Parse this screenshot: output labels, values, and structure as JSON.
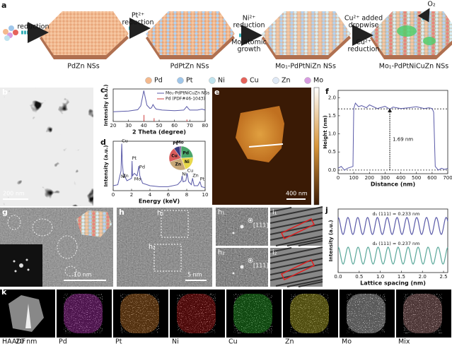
{
  "schematic": {
    "label": "a",
    "steps": [
      {
        "lines": [
          "reduction"
        ]
      },
      {
        "lines": [
          "Pt²⁺",
          "reduction"
        ]
      },
      {
        "lines": [
          "Ni²⁺",
          "reduction",
          "Mo atomic",
          "growth"
        ]
      },
      {
        "lines": [
          "Cu²⁺ added",
          "dropwise",
          "Cu²⁺",
          "reduction"
        ]
      }
    ],
    "products": [
      "PdZn NSs",
      "PdPtZn NSs",
      "Mo₁-PdPtNiZn NSs",
      "Mo₁-PdPtNiCuZn NSs"
    ],
    "o2": "O₂",
    "legend": [
      {
        "name": "Pd",
        "color": "#f4b98d"
      },
      {
        "name": "Pt",
        "color": "#9fc6ea"
      },
      {
        "name": "Ni",
        "color": "#bfe3ee"
      },
      {
        "name": "Cu",
        "color": "#e5625a"
      },
      {
        "name": "Zn",
        "color": "#dfe9f6"
      },
      {
        "name": "Mo",
        "color": "#d79be0"
      }
    ]
  },
  "b": {
    "label": "b",
    "scale": "200 nm"
  },
  "c": {
    "label": "c",
    "xlabel": "2 Theta (degree)",
    "ylabel": "Intensity (a.u.)",
    "xlim": [
      20,
      80
    ],
    "ylim": [
      0,
      1
    ],
    "xticks": [
      20,
      30,
      40,
      50,
      60,
      70,
      80
    ],
    "series": [
      {
        "name": "Mo₁-PdPtNiCuZn NSs",
        "color": "#5a5aa8",
        "x": [
          20,
          30,
          36,
          38,
          39,
          40,
          41,
          42,
          44,
          45,
          46,
          47,
          48,
          52,
          60,
          66,
          67,
          68,
          69,
          70,
          75,
          78,
          80
        ],
        "values": [
          0.3,
          0.32,
          0.36,
          0.48,
          0.72,
          0.95,
          0.72,
          0.5,
          0.4,
          0.42,
          0.52,
          0.44,
          0.38,
          0.35,
          0.33,
          0.35,
          0.4,
          0.46,
          0.4,
          0.35,
          0.35,
          0.38,
          0.35
        ]
      }
    ],
    "reference": {
      "name": "Pd (PDF#46-1043)",
      "color": "#d04040",
      "x": [
        40.1,
        46.7,
        68.1
      ],
      "values": [
        0.2,
        0.1,
        0.06
      ]
    }
  },
  "d": {
    "label": "d",
    "xlabel": "Energy (keV)",
    "ylabel": "Intensity (a.u.)",
    "xlim": [
      0,
      10
    ],
    "ylim": [
      0,
      1
    ],
    "xticks": [
      0,
      2,
      4,
      6,
      8,
      10
    ],
    "series": [
      {
        "color": "#5a5aa8",
        "x": [
          0,
          0.5,
          0.85,
          0.93,
          1.0,
          1.1,
          1.5,
          2.0,
          2.05,
          2.1,
          2.3,
          2.6,
          2.8,
          2.9,
          3.2,
          4,
          5,
          6,
          7,
          7.4,
          7.5,
          7.6,
          7.9,
          8.05,
          8.2,
          8.5,
          8.63,
          8.8,
          9.2,
          9.44,
          9.6,
          10
        ],
        "values": [
          0.1,
          0.12,
          0.4,
          0.95,
          0.55,
          0.35,
          0.2,
          0.25,
          0.6,
          0.3,
          0.35,
          0.3,
          0.5,
          0.3,
          0.15,
          0.1,
          0.08,
          0.08,
          0.12,
          0.2,
          0.3,
          0.18,
          0.2,
          0.35,
          0.18,
          0.12,
          0.25,
          0.1,
          0.1,
          0.18,
          0.08,
          0.06
        ]
      }
    ],
    "peaks": [
      {
        "label": "Cu",
        "x": 0.93
      },
      {
        "label": "Ni",
        "x": 0.85
      },
      {
        "label": "Zn",
        "x": 1.01
      },
      {
        "label": "Pt",
        "x": 2.05
      },
      {
        "label": "Mo",
        "x": 2.29
      },
      {
        "label": "Pd",
        "x": 2.84
      },
      {
        "label": "Ni",
        "x": 7.48
      },
      {
        "label": "Cu",
        "x": 8.05
      },
      {
        "label": "Zn",
        "x": 8.63
      },
      {
        "label": "Pt",
        "x": 9.44
      }
    ],
    "pie": {
      "categories": [
        "Pd",
        "Ni",
        "Zn",
        "Cu",
        "Pt",
        "Mo"
      ],
      "values": [
        24,
        20,
        26,
        20,
        8,
        2
      ],
      "colors": [
        "#4aa56a",
        "#e8d84a",
        "#c8a878",
        "#d85a5a",
        "#3a3a80",
        "#6a3a8a"
      ]
    }
  },
  "e": {
    "label": "e",
    "scale": "400 nm"
  },
  "f": {
    "label": "f",
    "xlabel": "Distance (nm)",
    "ylabel": "Height (nm)",
    "xlim": [
      0,
      700
    ],
    "ylim": [
      -0.1,
      2.2
    ],
    "xticks": [
      0,
      100,
      200,
      300,
      400,
      500,
      600,
      700
    ],
    "yticks": [
      {
        "value": 0,
        "label": "0.0"
      },
      0.5,
      {
        "value": 1,
        "label": "1.0"
      },
      1.5,
      {
        "value": 2,
        "label": "2.0"
      }
    ],
    "series": [
      {
        "color": "#5a5aa8",
        "x": [
          0,
          20,
          40,
          60,
          80,
          95,
          100,
          110,
          130,
          150,
          180,
          200,
          250,
          300,
          330,
          350,
          400,
          450,
          500,
          550,
          580,
          600,
          610,
          620,
          640,
          660,
          680,
          700
        ],
        "values": [
          0.05,
          0.1,
          0.0,
          0.05,
          0.08,
          0.1,
          1.7,
          1.85,
          1.75,
          1.78,
          1.72,
          1.8,
          1.7,
          1.76,
          1.68,
          1.74,
          1.7,
          1.72,
          1.75,
          1.7,
          1.72,
          1.7,
          1.6,
          0.1,
          0.0,
          0.05,
          0.02,
          0.05
        ]
      }
    ],
    "step": {
      "value": 1.69,
      "label": "1.69 nm",
      "x": 330
    }
  },
  "g": {
    "label": "g",
    "scale": "10 nm"
  },
  "h": {
    "label": "h",
    "scale": "5 nm",
    "regions": [
      "h₁",
      "h₂"
    ]
  },
  "fft": [
    {
      "label": "h₁",
      "spot": "[111]"
    },
    {
      "label": "h₂",
      "spot": "[111]"
    }
  ],
  "lattice": [
    {
      "label": "i₁"
    },
    {
      "label": "i₂"
    }
  ],
  "j": {
    "label": "j",
    "xlabel": "Lattice spacing (nm)",
    "ylabel": "Intensity (a.u.)",
    "xlim": [
      0,
      2.6
    ],
    "xticks": [
      {
        "value": 0,
        "label": "0.0"
      },
      0.5,
      {
        "value": 1,
        "label": "1.0"
      },
      1.5,
      {
        "value": 2,
        "label": "2.0"
      },
      2.5
    ],
    "series": [
      {
        "name": "d₁ (111) = 0.233 nm",
        "spacing": 0.233,
        "color": "#5a5aa8"
      },
      {
        "name": "d₂ (111) = 0.237 nm",
        "spacing": 0.237,
        "color": "#5aa89a"
      }
    ]
  },
  "k": {
    "label": "k",
    "scale": "20 nm",
    "maps": [
      {
        "name": "HAADF",
        "color": "#cccccc"
      },
      {
        "name": "Pd",
        "color": "#e040e0"
      },
      {
        "name": "Pt",
        "color": "#f09030"
      },
      {
        "name": "Ni",
        "color": "#e02020"
      },
      {
        "name": "Cu",
        "color": "#30d030"
      },
      {
        "name": "Zn",
        "color": "#e8e030"
      },
      {
        "name": "Mo",
        "color": "#ffffff"
      },
      {
        "name": "Mix",
        "color": "#e0a0a0"
      }
    ]
  }
}
